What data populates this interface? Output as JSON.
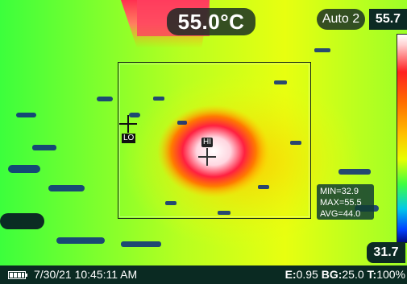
{
  "readout": {
    "center_temp": "55.0°C"
  },
  "scale": {
    "mode": "Auto 2",
    "max": "55.7",
    "min": "31.7"
  },
  "roi": {
    "min": "MIN=32.9",
    "max": "MAX=55.5",
    "avg": "AVG=44.0"
  },
  "markers": {
    "lo": "LO",
    "hi": "HI"
  },
  "status": {
    "datetime": "7/30/21 10:45:11 AM",
    "emissivity_label": "E:",
    "emissivity": "0.95",
    "bg_label": "BG:",
    "bg": "25.0",
    "transmission_label": "T:",
    "transmission": "100%"
  },
  "icons": {
    "battery": "battery-icon",
    "crosshair": "crosshair-icon"
  },
  "colors": {
    "hot": "#ffffff",
    "warm": "#ff2020",
    "mid": "#ffc000",
    "cool": "#40ff40",
    "cold": "#0040ff",
    "overlay": "#0c2a24"
  }
}
